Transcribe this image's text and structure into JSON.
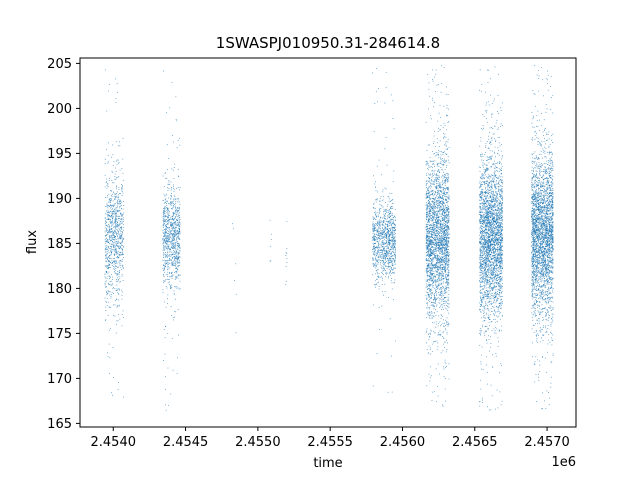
{
  "chart_data": {
    "type": "scatter",
    "title": "1SWASPJ010950.31-284614.8",
    "xlabel": "time",
    "ylabel": "flux",
    "x_offset_label": "1e6",
    "xlim": [
      2453720,
      2457150
    ],
    "ylim": [
      164.6,
      205.6
    ],
    "x_ticks": [
      2453950,
      2454450,
      2454950,
      2455450,
      2455950,
      2456450,
      2456950
    ],
    "x_tick_labels": [
      "2.4540",
      "2.4545",
      "2.4550",
      "2.4555",
      "2.4560",
      "2.4565",
      "2.4570"
    ],
    "y_ticks": [
      165,
      170,
      175,
      180,
      185,
      190,
      195,
      200,
      205
    ],
    "y_tick_labels": [
      "165",
      "170",
      "175",
      "180",
      "185",
      "190",
      "195",
      "200",
      "205"
    ],
    "grid": false,
    "marker_color": "#1f77b4",
    "segments": [
      {
        "x0": 2453890,
        "x1": 2454020,
        "center": 185.5,
        "spread": 3.6,
        "n": 900,
        "tail": 0.08
      },
      {
        "x0": 2454290,
        "x1": 2454410,
        "center": 185.8,
        "spread": 2.8,
        "n": 900,
        "tail": 0.08
      },
      {
        "x0": 2454770,
        "x1": 2454800,
        "center": 183.5,
        "spread": 3.0,
        "n": 6,
        "tail": 0
      },
      {
        "x0": 2455030,
        "x1": 2455040,
        "center": 185.0,
        "spread": 1.8,
        "n": 6,
        "tail": 0
      },
      {
        "x0": 2455140,
        "x1": 2455150,
        "center": 183.8,
        "spread": 1.6,
        "n": 10,
        "tail": 0
      },
      {
        "x0": 2455740,
        "x1": 2455900,
        "center": 185.3,
        "spread": 2.3,
        "n": 1000,
        "tail": 0.05
      },
      {
        "x0": 2456110,
        "x1": 2456270,
        "center": 185.8,
        "spread": 4.4,
        "n": 2600,
        "tail": 0.07
      },
      {
        "x0": 2456480,
        "x1": 2456640,
        "center": 185.7,
        "spread": 4.3,
        "n": 2800,
        "tail": 0.07
      },
      {
        "x0": 2456840,
        "x1": 2456990,
        "center": 186.0,
        "spread": 4.5,
        "n": 2800,
        "tail": 0.07
      }
    ]
  }
}
